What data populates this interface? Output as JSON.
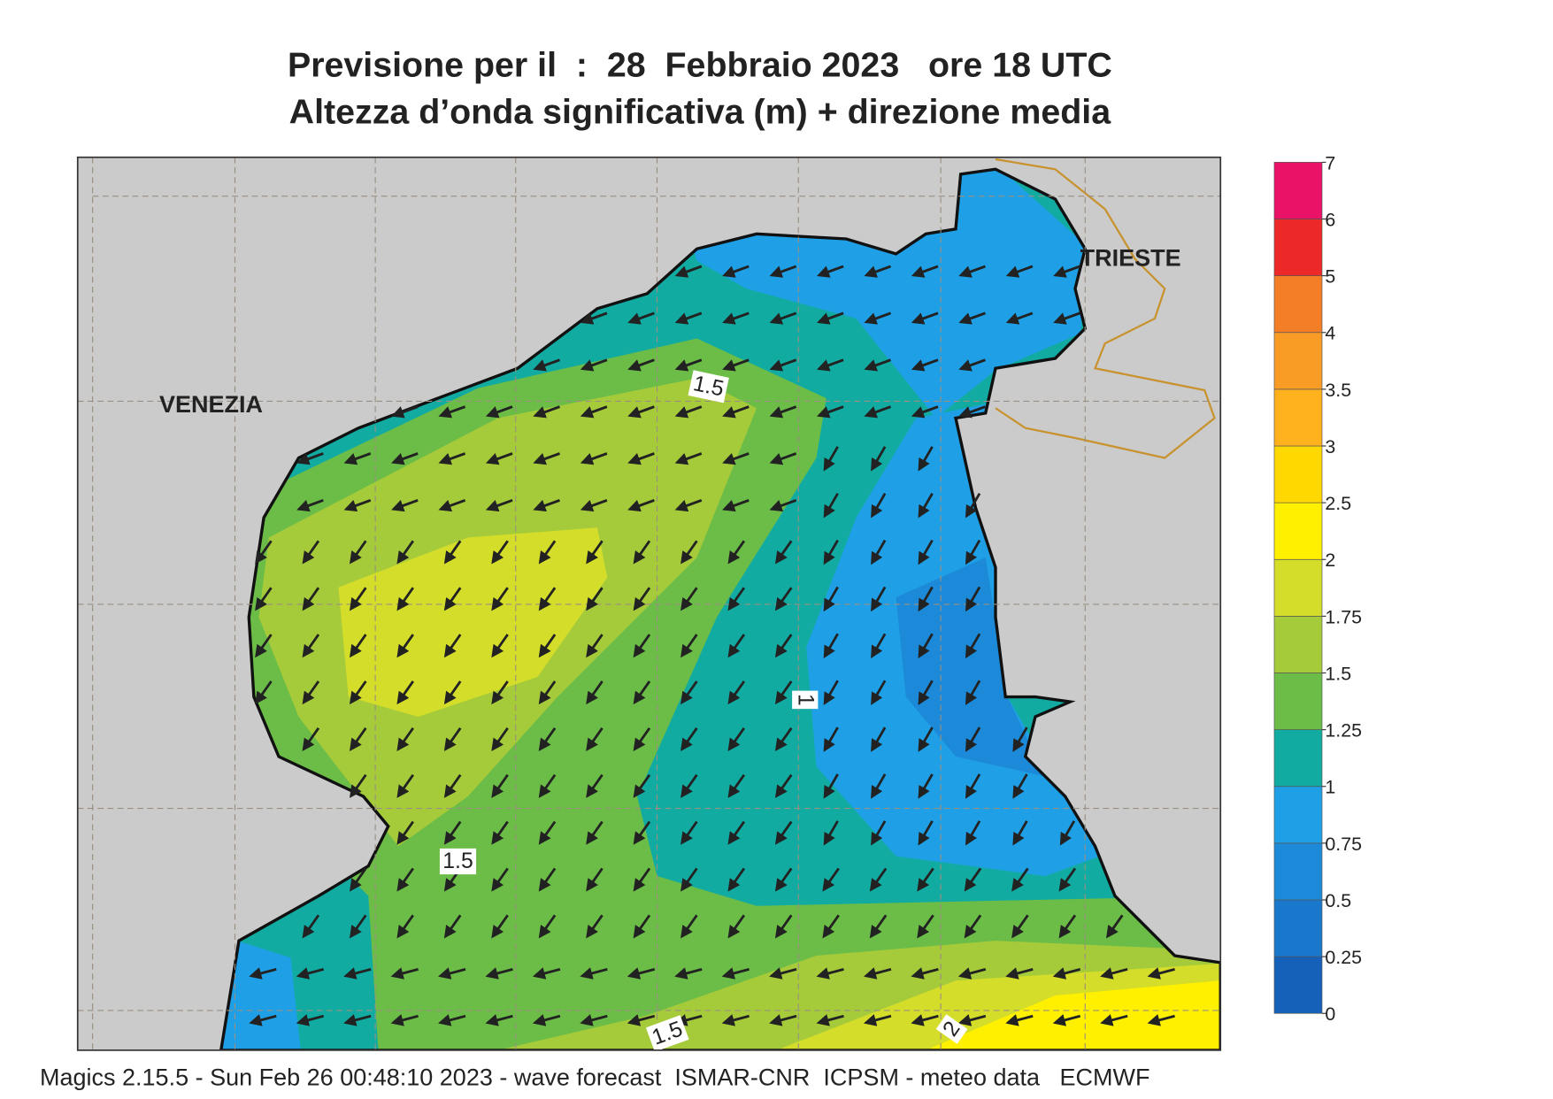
{
  "header": {
    "title": "Previsione per il  :  28  Febbraio 2023   ore 18 UTC",
    "subtitle": "Altezza d’onda significativa (m) + direzione media"
  },
  "map": {
    "places": [
      "VENEZIA",
      "TRIESTE"
    ],
    "contour_labels": [
      1.5,
      1.5,
      1,
      2,
      1.5
    ]
  },
  "colorbar": {
    "levels": [
      0,
      0.25,
      0.5,
      0.75,
      1,
      1.25,
      1.5,
      1.75,
      2,
      2.5,
      3,
      3.5,
      4,
      5,
      6,
      7
    ],
    "colors": [
      "#1560b8",
      "#1a78cc",
      "#1c8ad8",
      "#1fa0e6",
      "#12aba2",
      "#6cbd47",
      "#a6cb3a",
      "#d4dd2a",
      "#fff000",
      "#ffd800",
      "#ffb21e",
      "#f99c26",
      "#f47d28",
      "#ec2828",
      "#ea1266"
    ]
  },
  "footer": "Magics 2.15.5 - Sun Feb 26 00:48:10 2023 - wave forecast  ISMAR-CNR  ICPSM - meteo data   ECMWF"
}
